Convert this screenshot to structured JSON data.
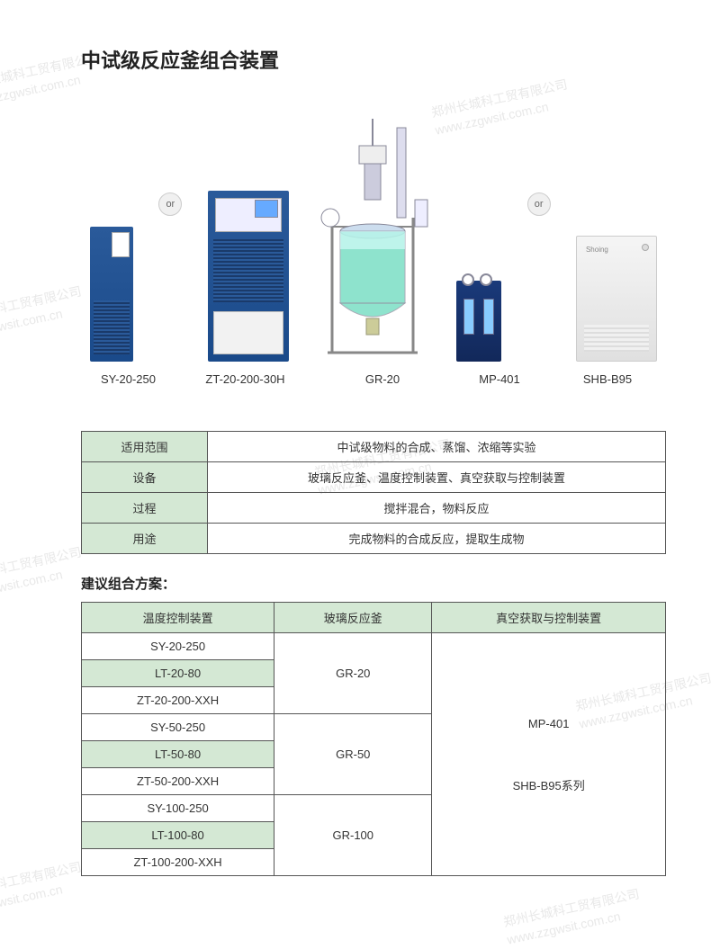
{
  "title": "中试级反应釜组合装置",
  "watermark_company": "郑州长城科工贸有限公司",
  "watermark_url": "www.zzgwsit.com.cn",
  "or_label": "or",
  "product_labels": {
    "p1": "SY-20-250",
    "p2": "ZT-20-200-30H",
    "p3": "GR-20",
    "p4": "MP-401",
    "p5": "SHB-B95"
  },
  "label_widths": {
    "p1": 85,
    "p2": 140,
    "p3": 130,
    "p4": 95,
    "p5": 110
  },
  "table1": {
    "rows": [
      {
        "k": "适用范围",
        "v": "中试级物料的合成、蒸馏、浓缩等实验"
      },
      {
        "k": "设备",
        "v": "玻璃反应釜、温度控制装置、真空获取与控制装置"
      },
      {
        "k": "过程",
        "v": "搅拌混合，物料反应"
      },
      {
        "k": "用途",
        "v": "完成物料的合成反应，提取生成物"
      }
    ]
  },
  "section2_title": "建议组合方案：",
  "table2": {
    "headers": {
      "h1": "温度控制装置",
      "h2": "玻璃反应釜",
      "h3": "真空获取与控制装置"
    },
    "col3_line1": "MP-401",
    "col3_line2": "SHB-B95系列",
    "groups": [
      {
        "reactor": "GR-20",
        "temps": [
          "SY-20-250",
          "LT-20-80",
          "ZT-20-200-XXH"
        ]
      },
      {
        "reactor": "GR-50",
        "temps": [
          "SY-50-250",
          "LT-50-80",
          "ZT-50-200-XXH"
        ]
      },
      {
        "reactor": "GR-100",
        "temps": [
          "SY-100-250",
          "LT-100-80",
          "ZT-100-200-XXH"
        ]
      }
    ]
  },
  "colors": {
    "header_bg": "#d4e8d4",
    "border": "#555555",
    "text": "#333333",
    "device_blue": "#2a5a9a",
    "reactor_liquid": "#5fd8b8"
  }
}
